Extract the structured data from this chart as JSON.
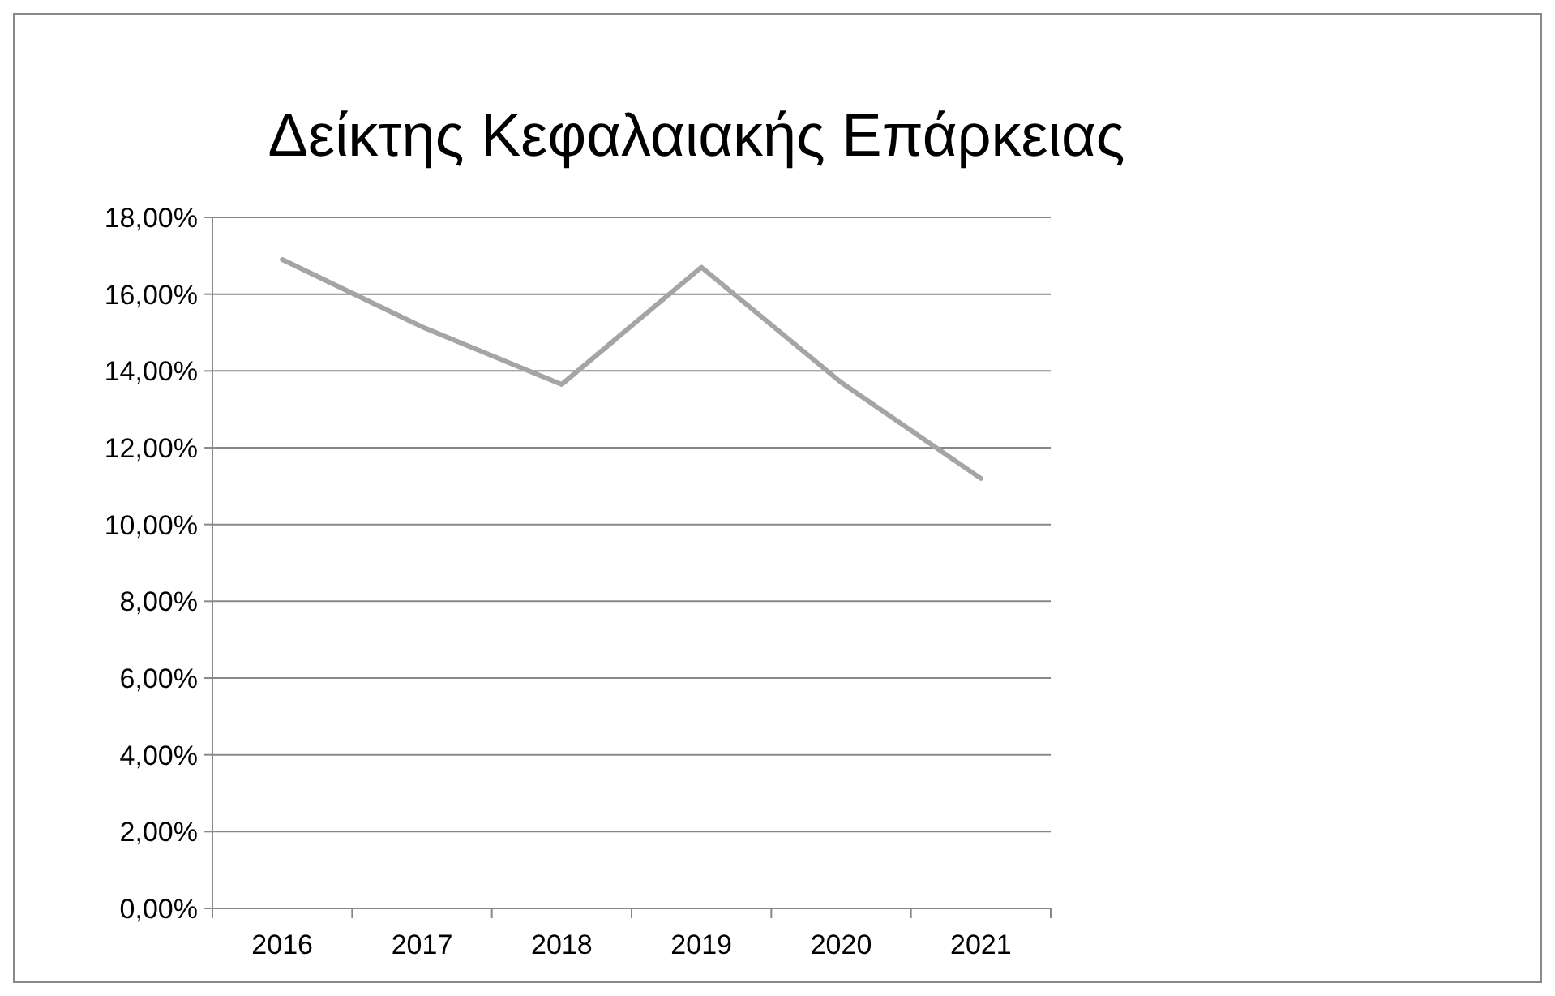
{
  "chart_data": {
    "type": "line",
    "title": "Δείκτης Κεφαλαιακής Επάρκειας",
    "categories": [
      "2016",
      "2017",
      "2018",
      "2019",
      "2020",
      "2021"
    ],
    "series": [
      {
        "color": "#a5a5a5",
        "values": [
          16.9,
          15.15,
          13.65,
          16.7,
          13.7,
          11.2
        ]
      }
    ],
    "ylim": [
      0,
      18
    ],
    "yticks": [
      {
        "value": 0,
        "label": "0,00%"
      },
      {
        "value": 2,
        "label": "2,00%"
      },
      {
        "value": 4,
        "label": "4,00%"
      },
      {
        "value": 6,
        "label": "6,00%"
      },
      {
        "value": 8,
        "label": "8,00%"
      },
      {
        "value": 10,
        "label": "10,00%"
      },
      {
        "value": 12,
        "label": "12,00%"
      },
      {
        "value": 14,
        "label": "14,00%"
      },
      {
        "value": 16,
        "label": "16,00%"
      },
      {
        "value": 18,
        "label": "18,00%"
      }
    ],
    "grid": "y",
    "marker": "none",
    "line_style": "solid"
  }
}
